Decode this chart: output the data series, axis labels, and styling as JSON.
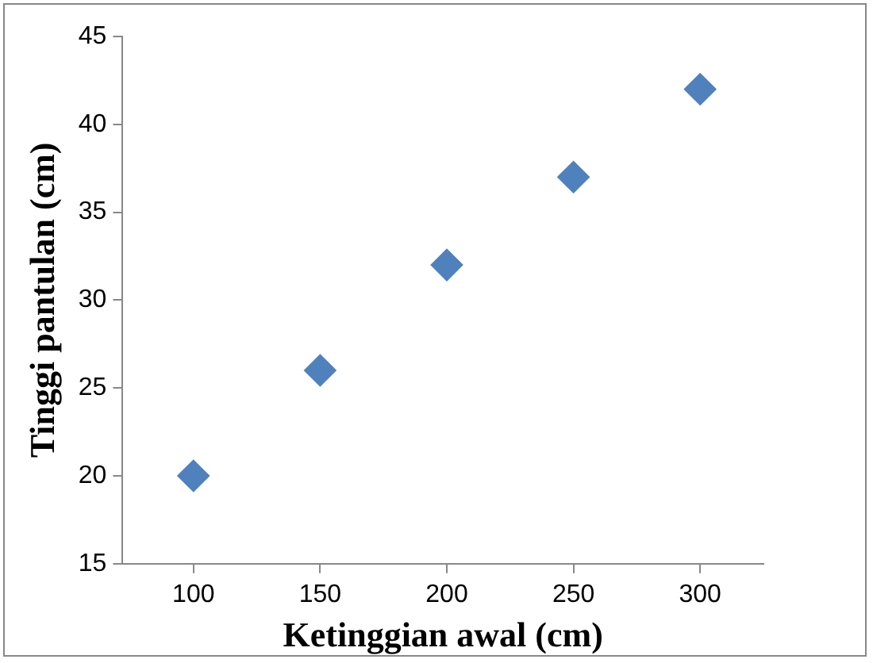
{
  "chart_data": {
    "type": "scatter",
    "xlabel": "Ketinggian awal (cm)",
    "ylabel": "Tinggi pantulan (cm)",
    "x": [
      100,
      150,
      200,
      250,
      300
    ],
    "series": [
      {
        "color": "#4f81bd",
        "values": [
          20,
          26,
          32,
          37,
          42
        ]
      }
    ],
    "xlim": [
      72,
      325
    ],
    "xticks": [
      100,
      150,
      200,
      250,
      300
    ],
    "ylim": [
      15,
      45
    ],
    "yticks": [
      15,
      20,
      25,
      30,
      35,
      40,
      45
    ],
    "marker": "diamond",
    "grid": false,
    "legend": false
  }
}
